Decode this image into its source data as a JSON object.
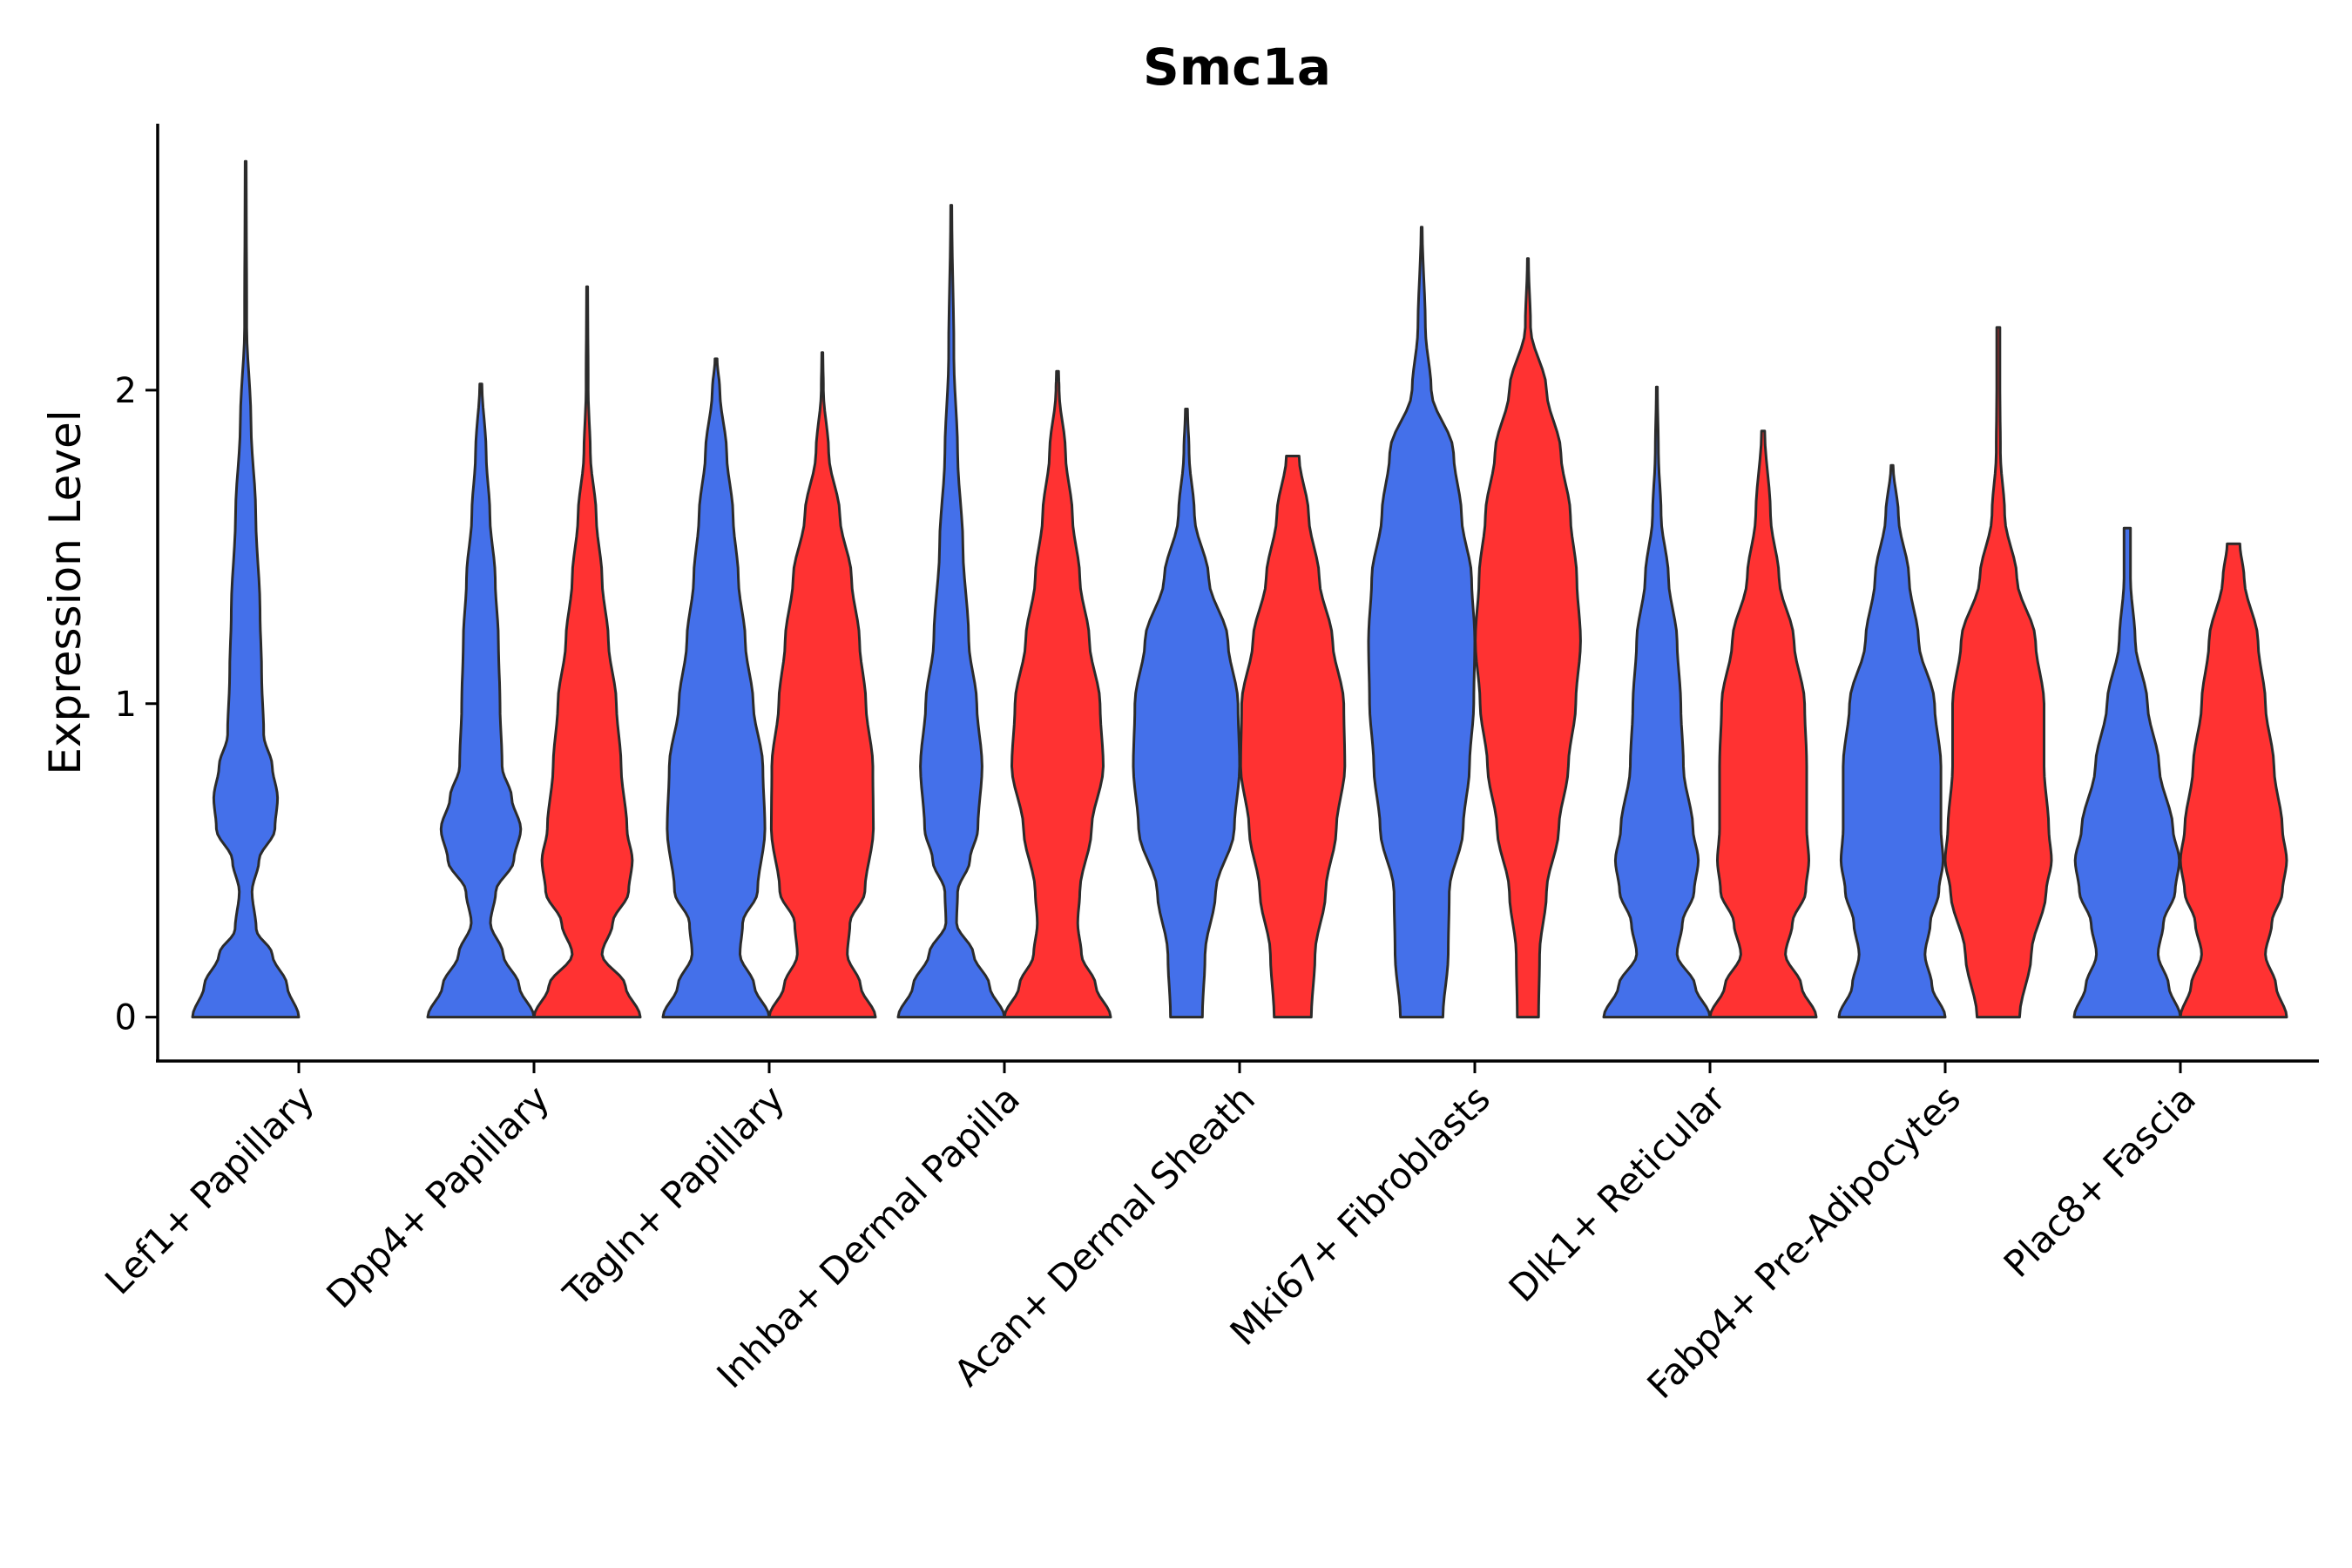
{
  "chart_data": {
    "type": "violin",
    "title": "Smc1a",
    "xlabel": "",
    "ylabel": "Expression Level",
    "ylim": [
      -0.14,
      2.85
    ],
    "yticks": [
      0,
      1,
      2
    ],
    "grid": false,
    "legend": "none",
    "colors": {
      "group1": "#4470ea",
      "group2": "#ff3232"
    },
    "categories": [
      "Lef1+ Papillary",
      "Dpp4+ Papillary",
      "Tagln+ Papillary",
      "Inhba+ Dermal Papilla",
      "Acan+ Dermal Sheath",
      "Mki67+ Fibroblasts",
      "Dlk1+ Reticular",
      "Fabp4+ Pre-Adipocytes",
      "Plac8+ Fascia"
    ],
    "violins": [
      {
        "category": "Lef1+ Papillary",
        "group": 1,
        "max": 2.73,
        "profile": [
          [
            0,
            1.0
          ],
          [
            0.1,
            0.78
          ],
          [
            0.2,
            0.5
          ],
          [
            0.28,
            0.2
          ],
          [
            0.4,
            0.12
          ],
          [
            0.5,
            0.25
          ],
          [
            0.6,
            0.55
          ],
          [
            0.7,
            0.6
          ],
          [
            0.8,
            0.5
          ],
          [
            0.9,
            0.34
          ],
          [
            1.1,
            0.3
          ],
          [
            1.3,
            0.27
          ],
          [
            1.6,
            0.19
          ],
          [
            1.9,
            0.1
          ],
          [
            2.2,
            0.02
          ],
          [
            2.73,
            0.01
          ]
        ]
      },
      {
        "category": "Dpp4+ Papillary",
        "group": 1,
        "max": 2.02,
        "profile": [
          [
            0,
            1.0
          ],
          [
            0.1,
            0.72
          ],
          [
            0.2,
            0.42
          ],
          [
            0.3,
            0.18
          ],
          [
            0.4,
            0.28
          ],
          [
            0.5,
            0.62
          ],
          [
            0.6,
            0.75
          ],
          [
            0.7,
            0.58
          ],
          [
            0.8,
            0.4
          ],
          [
            1.0,
            0.36
          ],
          [
            1.2,
            0.33
          ],
          [
            1.4,
            0.27
          ],
          [
            1.6,
            0.17
          ],
          [
            1.8,
            0.1
          ],
          [
            2.02,
            0.02
          ]
        ]
      },
      {
        "category": "Dpp4+ Papillary",
        "group": 2,
        "max": 2.33,
        "profile": [
          [
            0,
            1.0
          ],
          [
            0.1,
            0.72
          ],
          [
            0.2,
            0.28
          ],
          [
            0.3,
            0.48
          ],
          [
            0.4,
            0.78
          ],
          [
            0.5,
            0.85
          ],
          [
            0.6,
            0.75
          ],
          [
            0.8,
            0.64
          ],
          [
            1.0,
            0.55
          ],
          [
            1.2,
            0.4
          ],
          [
            1.4,
            0.28
          ],
          [
            1.6,
            0.17
          ],
          [
            1.8,
            0.06
          ],
          [
            2.0,
            0.02
          ],
          [
            2.33,
            0.01
          ]
        ]
      },
      {
        "category": "Tagln+ Papillary",
        "group": 1,
        "max": 2.1,
        "profile": [
          [
            0,
            1.0
          ],
          [
            0.1,
            0.72
          ],
          [
            0.2,
            0.45
          ],
          [
            0.3,
            0.5
          ],
          [
            0.4,
            0.78
          ],
          [
            0.6,
            0.92
          ],
          [
            0.8,
            0.88
          ],
          [
            1.0,
            0.7
          ],
          [
            1.2,
            0.55
          ],
          [
            1.4,
            0.42
          ],
          [
            1.6,
            0.32
          ],
          [
            1.8,
            0.2
          ],
          [
            2.0,
            0.07
          ],
          [
            2.1,
            0.02
          ]
        ]
      },
      {
        "category": "Tagln+ Papillary",
        "group": 2,
        "max": 2.12,
        "profile": [
          [
            0,
            1.0
          ],
          [
            0.1,
            0.72
          ],
          [
            0.2,
            0.47
          ],
          [
            0.3,
            0.52
          ],
          [
            0.4,
            0.8
          ],
          [
            0.6,
            0.96
          ],
          [
            0.8,
            0.95
          ],
          [
            1.0,
            0.82
          ],
          [
            1.2,
            0.7
          ],
          [
            1.4,
            0.55
          ],
          [
            1.6,
            0.33
          ],
          [
            1.8,
            0.12
          ],
          [
            2.0,
            0.02
          ],
          [
            2.12,
            0.01
          ]
        ]
      },
      {
        "category": "Inhba+ Dermal Papilla",
        "group": 1,
        "max": 2.59,
        "profile": [
          [
            0,
            1.0
          ],
          [
            0.1,
            0.72
          ],
          [
            0.2,
            0.42
          ],
          [
            0.3,
            0.1
          ],
          [
            0.4,
            0.12
          ],
          [
            0.5,
            0.35
          ],
          [
            0.6,
            0.5
          ],
          [
            0.8,
            0.58
          ],
          [
            1.0,
            0.48
          ],
          [
            1.2,
            0.33
          ],
          [
            1.5,
            0.22
          ],
          [
            1.8,
            0.12
          ],
          [
            2.1,
            0.05
          ],
          [
            2.59,
            0.01
          ]
        ]
      },
      {
        "category": "Inhba+ Dermal Papilla",
        "group": 2,
        "max": 2.06,
        "profile": [
          [
            0,
            1.0
          ],
          [
            0.1,
            0.72
          ],
          [
            0.2,
            0.45
          ],
          [
            0.3,
            0.38
          ],
          [
            0.4,
            0.42
          ],
          [
            0.6,
            0.64
          ],
          [
            0.8,
            0.86
          ],
          [
            1.0,
            0.8
          ],
          [
            1.2,
            0.6
          ],
          [
            1.4,
            0.42
          ],
          [
            1.6,
            0.28
          ],
          [
            1.8,
            0.15
          ],
          [
            2.0,
            0.03
          ],
          [
            2.06,
            0.02
          ]
        ]
      },
      {
        "category": "Acan+ Dermal Sheath",
        "group": 1,
        "max": 1.94,
        "profile": [
          [
            0,
            0.3
          ],
          [
            0.2,
            0.35
          ],
          [
            0.4,
            0.55
          ],
          [
            0.6,
            0.9
          ],
          [
            0.8,
            1.0
          ],
          [
            1.0,
            0.97
          ],
          [
            1.2,
            0.78
          ],
          [
            1.4,
            0.42
          ],
          [
            1.6,
            0.15
          ],
          [
            1.8,
            0.05
          ],
          [
            1.94,
            0.02
          ]
        ]
      },
      {
        "category": "Acan+ Dermal Sheath",
        "group": 2,
        "max": 1.79,
        "profile": [
          [
            0,
            0.35
          ],
          [
            0.2,
            0.42
          ],
          [
            0.4,
            0.62
          ],
          [
            0.6,
            0.82
          ],
          [
            0.8,
            0.98
          ],
          [
            1.0,
            0.96
          ],
          [
            1.2,
            0.75
          ],
          [
            1.4,
            0.5
          ],
          [
            1.6,
            0.3
          ],
          [
            1.79,
            0.12
          ]
        ]
      },
      {
        "category": "Mki67+ Fibroblasts",
        "group": 1,
        "max": 2.52,
        "profile": [
          [
            0,
            0.4
          ],
          [
            0.2,
            0.5
          ],
          [
            0.4,
            0.52
          ],
          [
            0.6,
            0.78
          ],
          [
            0.8,
            0.9
          ],
          [
            1.0,
            0.98
          ],
          [
            1.2,
            1.0
          ],
          [
            1.4,
            0.94
          ],
          [
            1.6,
            0.75
          ],
          [
            1.8,
            0.6
          ],
          [
            2.0,
            0.18
          ],
          [
            2.2,
            0.07
          ],
          [
            2.52,
            0.01
          ]
        ]
      },
      {
        "category": "Mki67+ Fibroblasts",
        "group": 2,
        "max": 2.42,
        "profile": [
          [
            0,
            0.2
          ],
          [
            0.2,
            0.22
          ],
          [
            0.4,
            0.35
          ],
          [
            0.6,
            0.58
          ],
          [
            0.8,
            0.76
          ],
          [
            1.0,
            0.9
          ],
          [
            1.2,
            0.99
          ],
          [
            1.4,
            0.92
          ],
          [
            1.6,
            0.8
          ],
          [
            1.8,
            0.62
          ],
          [
            2.0,
            0.35
          ],
          [
            2.2,
            0.05
          ],
          [
            2.42,
            0.01
          ]
        ]
      },
      {
        "category": "Dlk1+ Reticular",
        "group": 1,
        "max": 2.01,
        "profile": [
          [
            0,
            1.0
          ],
          [
            0.1,
            0.72
          ],
          [
            0.2,
            0.38
          ],
          [
            0.3,
            0.48
          ],
          [
            0.4,
            0.7
          ],
          [
            0.5,
            0.78
          ],
          [
            0.6,
            0.68
          ],
          [
            0.8,
            0.5
          ],
          [
            1.0,
            0.45
          ],
          [
            1.2,
            0.38
          ],
          [
            1.4,
            0.22
          ],
          [
            1.6,
            0.08
          ],
          [
            1.8,
            0.03
          ],
          [
            2.01,
            0.01
          ]
        ]
      },
      {
        "category": "Dlk1+ Reticular",
        "group": 2,
        "max": 1.87,
        "profile": [
          [
            0,
            1.0
          ],
          [
            0.1,
            0.72
          ],
          [
            0.2,
            0.42
          ],
          [
            0.3,
            0.55
          ],
          [
            0.4,
            0.8
          ],
          [
            0.5,
            0.86
          ],
          [
            0.6,
            0.82
          ],
          [
            0.8,
            0.82
          ],
          [
            1.0,
            0.78
          ],
          [
            1.2,
            0.58
          ],
          [
            1.4,
            0.3
          ],
          [
            1.6,
            0.14
          ],
          [
            1.87,
            0.03
          ]
        ]
      },
      {
        "category": "Fabp4+ Pre-Adipocytes",
        "group": 1,
        "max": 1.76,
        "profile": [
          [
            0,
            1.0
          ],
          [
            0.1,
            0.75
          ],
          [
            0.2,
            0.62
          ],
          [
            0.3,
            0.72
          ],
          [
            0.4,
            0.88
          ],
          [
            0.5,
            0.96
          ],
          [
            0.6,
            0.92
          ],
          [
            0.8,
            0.92
          ],
          [
            1.0,
            0.8
          ],
          [
            1.2,
            0.5
          ],
          [
            1.4,
            0.32
          ],
          [
            1.6,
            0.12
          ],
          [
            1.76,
            0.02
          ]
        ]
      },
      {
        "category": "Fabp4+ Pre-Adipocytes",
        "group": 2,
        "max": 2.2,
        "profile": [
          [
            0,
            0.4
          ],
          [
            0.2,
            0.62
          ],
          [
            0.4,
            0.9
          ],
          [
            0.5,
            1.0
          ],
          [
            0.6,
            0.95
          ],
          [
            0.8,
            0.86
          ],
          [
            1.0,
            0.86
          ],
          [
            1.2,
            0.7
          ],
          [
            1.4,
            0.35
          ],
          [
            1.6,
            0.12
          ],
          [
            1.8,
            0.04
          ],
          [
            2.0,
            0.03
          ],
          [
            2.2,
            0.03
          ]
        ]
      },
      {
        "category": "Plac8+ Fascia",
        "group": 1,
        "max": 1.56,
        "profile": [
          [
            0,
            1.0
          ],
          [
            0.1,
            0.78
          ],
          [
            0.2,
            0.58
          ],
          [
            0.3,
            0.68
          ],
          [
            0.4,
            0.9
          ],
          [
            0.5,
            0.98
          ],
          [
            0.6,
            0.86
          ],
          [
            0.8,
            0.6
          ],
          [
            1.0,
            0.38
          ],
          [
            1.2,
            0.15
          ],
          [
            1.4,
            0.06
          ],
          [
            1.56,
            0.06
          ]
        ]
      },
      {
        "category": "Plac8+ Fascia",
        "group": 2,
        "max": 1.51,
        "profile": [
          [
            0,
            1.0
          ],
          [
            0.1,
            0.8
          ],
          [
            0.2,
            0.6
          ],
          [
            0.3,
            0.72
          ],
          [
            0.4,
            0.92
          ],
          [
            0.5,
            1.0
          ],
          [
            0.6,
            0.92
          ],
          [
            0.8,
            0.76
          ],
          [
            1.0,
            0.6
          ],
          [
            1.2,
            0.46
          ],
          [
            1.4,
            0.2
          ],
          [
            1.51,
            0.12
          ]
        ]
      }
    ]
  }
}
